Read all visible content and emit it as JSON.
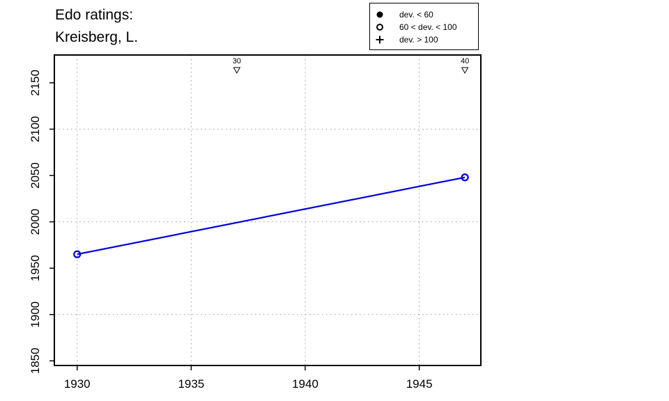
{
  "title_lines": [
    "Edo ratings:",
    "Kreisberg, L."
  ],
  "legend": [
    {
      "symbol": "filled-circle",
      "label": "dev. < 60"
    },
    {
      "symbol": "open-circle",
      "label": "60 < dev. < 100"
    },
    {
      "symbol": "plus",
      "label": "dev. > 100"
    }
  ],
  "colors": {
    "series": "#0000dd",
    "grid": "#999999",
    "axis": "#000000"
  },
  "chart_data": {
    "type": "line",
    "title": "Edo ratings: Kreisberg, L.",
    "xlabel": "",
    "ylabel": "",
    "xlim": [
      1929.0,
      1947.7
    ],
    "ylim": [
      1845,
      2180
    ],
    "x_ticks": [
      1930,
      1935,
      1940,
      1945
    ],
    "y_ticks": [
      1850,
      1900,
      1950,
      2000,
      2050,
      2100,
      2150
    ],
    "x_grid": [
      1930,
      1935,
      1940,
      1945
    ],
    "y_grid": [
      1900,
      2000,
      2100
    ],
    "grid": true,
    "grid_style": "dotted",
    "legend_position": "top-right, above plot",
    "series": [
      {
        "marker": "open-circle",
        "x": [
          1930,
          1947
        ],
        "y": [
          1965,
          2048
        ]
      }
    ],
    "annotations": [
      {
        "x": 1937,
        "label": "30",
        "marker": "down-triangle"
      },
      {
        "x": 1947,
        "label": "40",
        "marker": "down-triangle"
      }
    ]
  }
}
